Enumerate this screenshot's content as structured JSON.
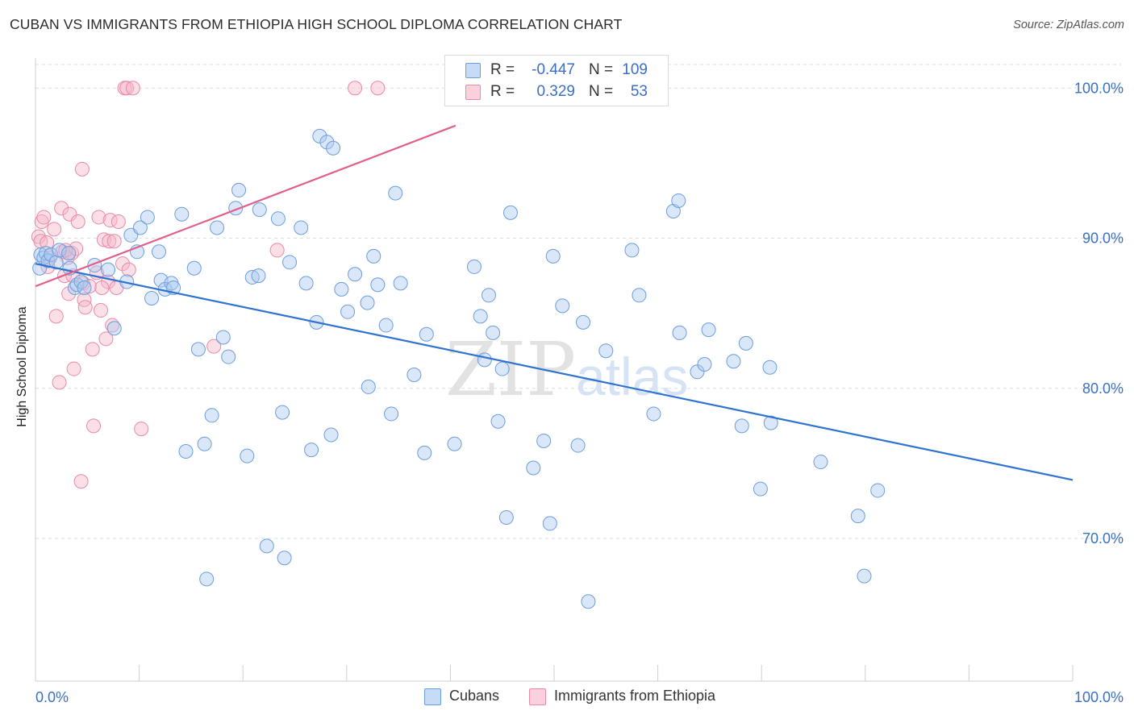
{
  "title": "CUBAN VS IMMIGRANTS FROM ETHIOPIA HIGH SCHOOL DIPLOMA CORRELATION CHART",
  "source": "Source: ZipAtlas.com",
  "watermark": {
    "zip": "ZIP",
    "atlas": "atlas"
  },
  "colors": {
    "blue_fill": "#aac9f0",
    "blue_stroke": "#6d9ddc",
    "blue_line": "#2f73d0",
    "pink_fill": "#f5b8ca",
    "pink_stroke": "#e98aa8",
    "pink_line": "#e0608a",
    "tick_label": "#3a6fc4",
    "grid": "#dedede"
  },
  "legend_top": {
    "rows": [
      {
        "series": "blue",
        "r_label": "R =",
        "r_value": "-0.447",
        "n_label": "N =",
        "n_value": "109"
      },
      {
        "series": "pink",
        "r_label": "R =",
        "r_value": "0.329",
        "n_label": "N =",
        "n_value": "53"
      }
    ]
  },
  "legend_bottom": [
    "Cubans",
    "Immigrants from Ethiopia"
  ],
  "chart_data": {
    "type": "scatter",
    "title": "CUBAN VS IMMIGRANTS FROM ETHIOPIA HIGH SCHOOL DIPLOMA CORRELATION CHART",
    "xlabel": "",
    "ylabel": "High School Diploma",
    "xlim": [
      0,
      100
    ],
    "ylim": [
      60.5,
      102
    ],
    "x_tick_labels": [
      "0.0%",
      "100.0%"
    ],
    "y_ticks": [
      70,
      80,
      90,
      100
    ],
    "y_tick_labels": [
      "70.0%",
      "80.0%",
      "90.0%",
      "100.0%"
    ],
    "grid": true,
    "legend_position": "top-center",
    "series": [
      {
        "name": "Cubans",
        "color": "blue",
        "trend": {
          "x": [
            0,
            100
          ],
          "y": [
            88.3,
            73.9
          ]
        },
        "points": [
          [
            0.4,
            88.0
          ],
          [
            0.5,
            88.9
          ],
          [
            0.8,
            88.7
          ],
          [
            1.0,
            89.0
          ],
          [
            1.2,
            88.5
          ],
          [
            1.5,
            88.9
          ],
          [
            2.0,
            88.4
          ],
          [
            2.3,
            89.2
          ],
          [
            3.2,
            89.0
          ],
          [
            3.3,
            88.0
          ],
          [
            3.8,
            86.7
          ],
          [
            4.0,
            86.9
          ],
          [
            4.4,
            87.1
          ],
          [
            4.7,
            86.7
          ],
          [
            5.7,
            88.2
          ],
          [
            7.0,
            87.9
          ],
          [
            7.6,
            84.0
          ],
          [
            8.8,
            87.1
          ],
          [
            9.2,
            90.2
          ],
          [
            9.8,
            89.1
          ],
          [
            10.1,
            90.7
          ],
          [
            10.8,
            91.4
          ],
          [
            11.2,
            86.0
          ],
          [
            11.9,
            89.1
          ],
          [
            12.1,
            87.2
          ],
          [
            12.5,
            86.6
          ],
          [
            13.1,
            87.0
          ],
          [
            13.3,
            86.7
          ],
          [
            14.1,
            91.6
          ],
          [
            14.5,
            75.8
          ],
          [
            15.3,
            88.0
          ],
          [
            15.7,
            82.6
          ],
          [
            16.3,
            76.3
          ],
          [
            16.5,
            67.3
          ],
          [
            17.0,
            78.2
          ],
          [
            17.5,
            90.7
          ],
          [
            18.1,
            83.4
          ],
          [
            18.6,
            82.1
          ],
          [
            19.3,
            92.0
          ],
          [
            19.6,
            93.2
          ],
          [
            20.4,
            75.5
          ],
          [
            20.9,
            87.4
          ],
          [
            21.5,
            87.5
          ],
          [
            21.6,
            91.9
          ],
          [
            22.3,
            69.5
          ],
          [
            23.4,
            91.3
          ],
          [
            23.8,
            78.4
          ],
          [
            24.0,
            68.7
          ],
          [
            24.5,
            88.4
          ],
          [
            25.6,
            90.7
          ],
          [
            26.1,
            87.0
          ],
          [
            26.6,
            75.9
          ],
          [
            27.1,
            84.4
          ],
          [
            27.4,
            96.8
          ],
          [
            28.1,
            96.4
          ],
          [
            28.5,
            76.9
          ],
          [
            28.7,
            96.0
          ],
          [
            29.5,
            86.6
          ],
          [
            30.1,
            85.1
          ],
          [
            30.8,
            87.6
          ],
          [
            32.0,
            85.7
          ],
          [
            32.1,
            80.1
          ],
          [
            33.0,
            86.9
          ],
          [
            33.8,
            84.2
          ],
          [
            34.3,
            78.3
          ],
          [
            34.7,
            93.0
          ],
          [
            35.2,
            87.0
          ],
          [
            36.5,
            80.9
          ],
          [
            37.5,
            75.7
          ],
          [
            37.7,
            83.6
          ],
          [
            40.4,
            76.3
          ],
          [
            42.3,
            88.1
          ],
          [
            42.9,
            84.8
          ],
          [
            43.3,
            81.9
          ],
          [
            43.7,
            86.2
          ],
          [
            44.1,
            83.7
          ],
          [
            44.6,
            77.8
          ],
          [
            45.0,
            81.3
          ],
          [
            45.4,
            71.4
          ],
          [
            45.8,
            91.7
          ],
          [
            48.0,
            74.7
          ],
          [
            49.0,
            76.5
          ],
          [
            49.6,
            71.0
          ],
          [
            49.9,
            88.8
          ],
          [
            50.8,
            85.5
          ],
          [
            52.3,
            76.2
          ],
          [
            52.8,
            84.4
          ],
          [
            53.3,
            65.8
          ],
          [
            55.0,
            82.5
          ],
          [
            58.2,
            86.2
          ],
          [
            59.6,
            78.3
          ],
          [
            61.5,
            91.8
          ],
          [
            62.0,
            92.5
          ],
          [
            62.1,
            83.7
          ],
          [
            63.8,
            81.1
          ],
          [
            64.5,
            81.6
          ],
          [
            64.9,
            83.9
          ],
          [
            67.3,
            81.8
          ],
          [
            68.1,
            77.5
          ],
          [
            68.5,
            83.0
          ],
          [
            69.9,
            73.3
          ],
          [
            70.8,
            81.4
          ],
          [
            70.9,
            77.7
          ],
          [
            75.7,
            75.1
          ],
          [
            79.3,
            71.5
          ],
          [
            79.9,
            67.5
          ],
          [
            81.2,
            73.2
          ],
          [
            32.6,
            88.8
          ],
          [
            57.5,
            89.2
          ]
        ]
      },
      {
        "name": "Immigrants from Ethiopia",
        "color": "pink",
        "trend": {
          "x": [
            0,
            40.5
          ],
          "y": [
            86.8,
            97.5
          ]
        },
        "points": [
          [
            0.3,
            90.1
          ],
          [
            0.5,
            89.8
          ],
          [
            0.6,
            91.1
          ],
          [
            0.8,
            91.4
          ],
          [
            1.1,
            89.7
          ],
          [
            1.4,
            88.7
          ],
          [
            1.8,
            90.6
          ],
          [
            2.0,
            84.8
          ],
          [
            2.3,
            80.4
          ],
          [
            2.5,
            92.0
          ],
          [
            2.6,
            89.1
          ],
          [
            2.8,
            87.5
          ],
          [
            3.1,
            88.7
          ],
          [
            3.2,
            86.3
          ],
          [
            3.3,
            91.6
          ],
          [
            3.5,
            89.0
          ],
          [
            3.6,
            87.5
          ],
          [
            3.7,
            81.3
          ],
          [
            3.9,
            89.3
          ],
          [
            4.1,
            91.1
          ],
          [
            4.4,
            73.8
          ],
          [
            4.5,
            94.6
          ],
          [
            4.6,
            87.0
          ],
          [
            4.7,
            85.9
          ],
          [
            4.8,
            85.4
          ],
          [
            5.2,
            86.8
          ],
          [
            5.5,
            82.6
          ],
          [
            5.6,
            77.5
          ],
          [
            5.9,
            87.7
          ],
          [
            6.1,
            91.4
          ],
          [
            6.3,
            85.2
          ],
          [
            6.6,
            89.9
          ],
          [
            6.8,
            83.3
          ],
          [
            7.0,
            87.1
          ],
          [
            7.1,
            89.8
          ],
          [
            7.2,
            91.2
          ],
          [
            7.4,
            84.2
          ],
          [
            7.6,
            89.8
          ],
          [
            7.8,
            86.7
          ],
          [
            8.0,
            91.1
          ],
          [
            8.4,
            88.3
          ],
          [
            8.6,
            100.0
          ],
          [
            8.8,
            100.0
          ],
          [
            9.0,
            87.9
          ],
          [
            9.4,
            100.0
          ],
          [
            10.2,
            77.3
          ],
          [
            17.2,
            82.8
          ],
          [
            23.3,
            89.2
          ],
          [
            30.8,
            100.0
          ],
          [
            33.0,
            100.0
          ],
          [
            1.2,
            88.1
          ],
          [
            2.9,
            89.2
          ],
          [
            6.4,
            86.7
          ]
        ]
      }
    ]
  }
}
